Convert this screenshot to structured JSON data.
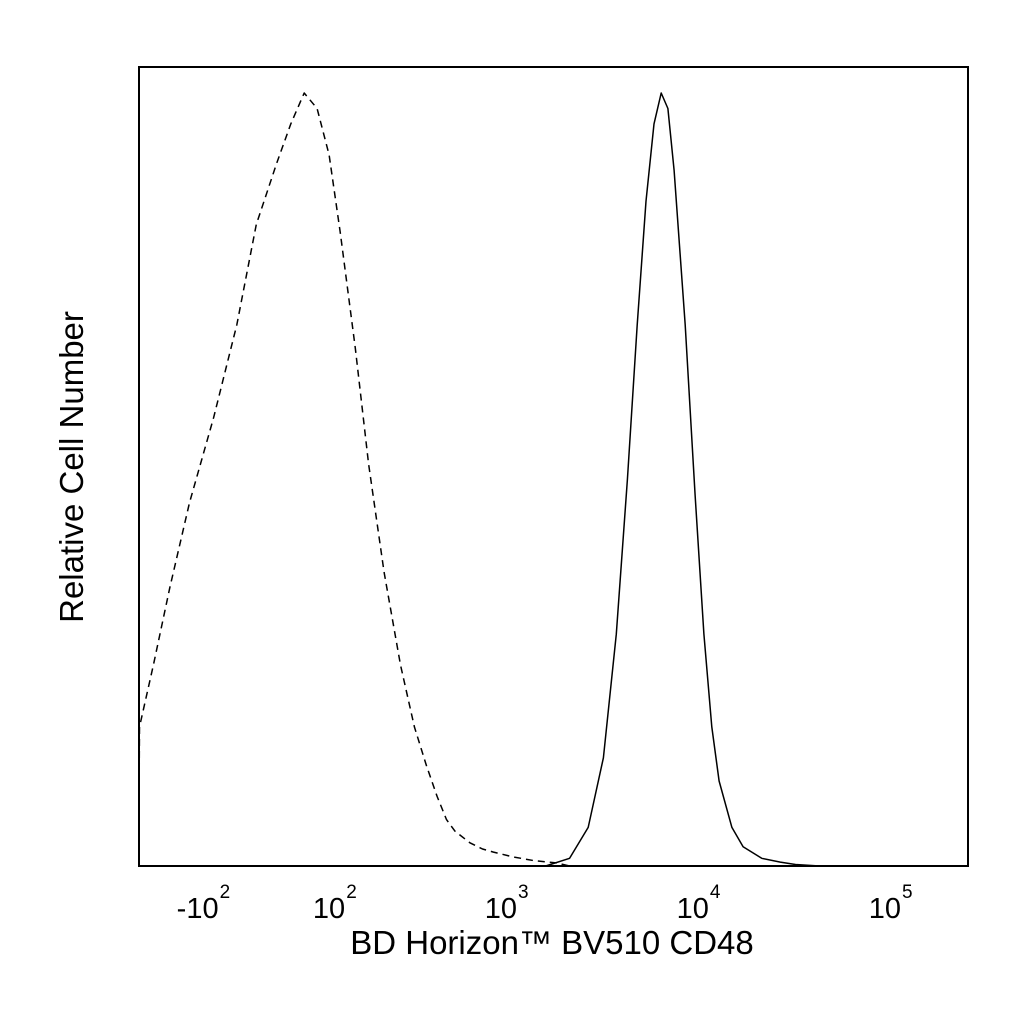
{
  "chart_data": {
    "type": "line",
    "title": "",
    "xlabel": "BD Horizon™ BV510 CD48",
    "ylabel": "Relative Cell Number",
    "x_scale": "biexponential",
    "xlim": [
      -1000,
      262144
    ],
    "ylim": [
      0,
      1
    ],
    "grid": false,
    "legend": "none",
    "x_ticks": [
      {
        "base": "-10",
        "exp": "2",
        "value": -100
      },
      {
        "base": "10",
        "exp": "2",
        "value": 100
      },
      {
        "base": "10",
        "exp": "3",
        "value": 1000
      },
      {
        "base": "10",
        "exp": "4",
        "value": 10000
      },
      {
        "base": "10",
        "exp": "5",
        "value": 100000
      }
    ],
    "series": [
      {
        "line_style": "dashed",
        "color": "#000000",
        "x": [
          -700,
          -500,
          -400,
          -300,
          -250,
          -200,
          -150,
          -100,
          -60,
          -30,
          0,
          20,
          40,
          60,
          80,
          100,
          130,
          160,
          200,
          250,
          300,
          350,
          400,
          450,
          500,
          600,
          700,
          800,
          1000,
          1300,
          1700,
          2000
        ],
        "y": [
          0.0,
          0.03,
          0.08,
          0.18,
          0.26,
          0.36,
          0.47,
          0.58,
          0.7,
          0.83,
          0.91,
          0.96,
          1.0,
          0.98,
          0.92,
          0.82,
          0.67,
          0.52,
          0.38,
          0.26,
          0.18,
          0.13,
          0.09,
          0.06,
          0.045,
          0.03,
          0.022,
          0.018,
          0.012,
          0.007,
          0.004,
          0.0
        ]
      },
      {
        "line_style": "solid",
        "color": "#000000",
        "x": [
          1500,
          2000,
          2500,
          3000,
          3500,
          4000,
          4500,
          5000,
          5500,
          6000,
          6500,
          7000,
          8000,
          9000,
          10000,
          11000,
          12000,
          14000,
          16000,
          20000,
          25000,
          30000,
          40000
        ],
        "y": [
          0.0,
          0.01,
          0.05,
          0.14,
          0.3,
          0.5,
          0.7,
          0.86,
          0.96,
          1.0,
          0.98,
          0.9,
          0.7,
          0.48,
          0.3,
          0.18,
          0.11,
          0.05,
          0.025,
          0.01,
          0.005,
          0.002,
          0.0
        ]
      }
    ]
  }
}
